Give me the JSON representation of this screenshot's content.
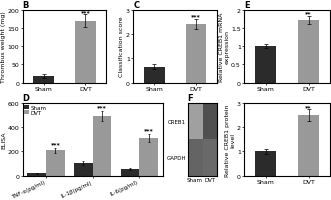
{
  "chart_data": [
    {
      "type": "bar",
      "title": "B",
      "categories": [
        "Sham",
        "DVT"
      ],
      "values": [
        18,
        170
      ],
      "errors": [
        5,
        18
      ],
      "colors": [
        "#2b2b2b",
        "#999999"
      ],
      "y_label": "Thrombus weight (mg)",
      "ylim": [
        0,
        200
      ],
      "yticks": [
        0,
        50,
        100,
        150,
        200
      ],
      "annotations": [
        {
          "text": "***",
          "x": "DVT",
          "y": 188
        }
      ]
    },
    {
      "type": "bar",
      "title": "C",
      "categories": [
        "Sham",
        "DVT"
      ],
      "values": [
        0.65,
        2.4
      ],
      "errors": [
        0.1,
        0.2
      ],
      "colors": [
        "#2b2b2b",
        "#999999"
      ],
      "y_label": "Classification score",
      "ylim": [
        0,
        3
      ],
      "yticks": [
        0,
        1,
        2,
        3
      ],
      "annotations": [
        {
          "text": "***",
          "x": "DVT",
          "y": 2.65
        }
      ]
    },
    {
      "type": "bar",
      "title": "D",
      "categories": [
        "TNF-α(pg/ml)",
        "IL-1β(pg/ml)",
        "IL-6(pg/ml)"
      ],
      "series": [
        {
          "name": "Sham",
          "color": "#2b2b2b",
          "values": [
            18,
            105,
            55
          ],
          "errors": [
            3,
            15,
            8
          ]
        },
        {
          "name": "DVT",
          "color": "#999999",
          "values": [
            210,
            490,
            310
          ],
          "errors": [
            20,
            40,
            30
          ]
        }
      ],
      "y_label": "ELISA",
      "ylim": [
        0,
        600
      ],
      "yticks": [
        0,
        200,
        400,
        600
      ],
      "legend": "upper left",
      "annotations": [
        {
          "text": "***",
          "x": "TNF-α(pg/ml)",
          "series": "DVT",
          "y": 245
        },
        {
          "text": "***",
          "x": "IL-1β(pg/ml)",
          "series": "DVT",
          "y": 545
        },
        {
          "text": "***",
          "x": "IL-6(pg/ml)",
          "series": "DVT",
          "y": 355
        }
      ]
    },
    {
      "type": "bar",
      "title": "E",
      "categories": [
        "Sham",
        "DVT"
      ],
      "values": [
        1.0,
        1.72
      ],
      "errors": [
        0.05,
        0.12
      ],
      "colors": [
        "#2b2b2b",
        "#999999"
      ],
      "y_label": "Relative CREB1 mRNA\nexpression",
      "ylim": [
        0.0,
        2.0
      ],
      "yticks": [
        0,
        0.5,
        1,
        1.5,
        2
      ],
      "annotations": [
        {
          "text": "**",
          "x": "DVT",
          "y": 1.85
        }
      ]
    },
    {
      "type": "heatmap",
      "title": "F",
      "categories": [
        "Sham",
        "DVT"
      ],
      "rows": [
        "CREB1",
        "GAPDH"
      ],
      "cells": [
        [
          160,
          80
        ],
        [
          100,
          105
        ]
      ]
    },
    {
      "type": "bar",
      "categories": [
        "Sham",
        "DVT"
      ],
      "values": [
        1.0,
        2.5
      ],
      "errors": [
        0.1,
        0.25
      ],
      "colors": [
        "#2b2b2b",
        "#999999"
      ],
      "y_label": "Relative CREB1 protein\nlevel",
      "ylim": [
        0,
        3
      ],
      "yticks": [
        0,
        1,
        2,
        3
      ],
      "annotations": [
        {
          "text": "**",
          "x": "DVT",
          "y": 2.75
        }
      ]
    }
  ]
}
